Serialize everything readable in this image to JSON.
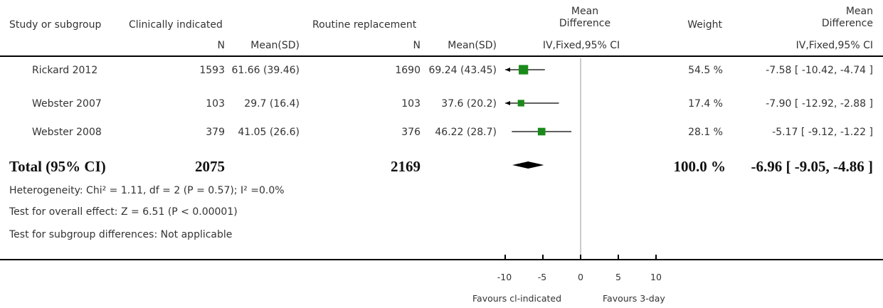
{
  "header": {
    "study": "Study or subgroup",
    "group1": "Clinically indicated",
    "group2": "Routine replacement",
    "md_line1": "Mean",
    "md_line2": "Difference",
    "weight": "Weight",
    "md2_line1": "Mean",
    "md2_line2": "Difference",
    "n1": "N",
    "mean1": "Mean(SD)",
    "n2": "N",
    "mean2": "Mean(SD)",
    "method": "IV,Fixed,95% CI",
    "method2": "IV,Fixed,95% CI"
  },
  "rows": [
    {
      "study": "Rickard 2012",
      "n1": "1593",
      "mean1": "61.66 (39.46)",
      "n2": "1690",
      "mean2": "69.24 (43.45)",
      "weight": "54.5 %",
      "ci": "-7.58 [ -10.42, -4.74 ]"
    },
    {
      "study": "Webster 2007",
      "n1": "103",
      "mean1": "29.7 (16.4)",
      "n2": "103",
      "mean2": "37.6 (20.2)",
      "weight": "17.4 %",
      "ci": "-7.90 [ -12.92, -2.88 ]"
    },
    {
      "study": "Webster 2008",
      "n1": "379",
      "mean1": "41.05 (26.6)",
      "n2": "376",
      "mean2": "46.22 (28.7)",
      "weight": "28.1 %",
      "ci": "-5.17 [ -9.12, -1.22 ]"
    }
  ],
  "total": {
    "label": "Total (95% CI)",
    "n1": "2075",
    "n2": "2169",
    "weight": "100.0 %",
    "ci": "-6.96 [ -9.05, -4.86 ]"
  },
  "notes": {
    "heterogeneity": "Heterogeneity: Chi² = 1.11, df = 2 (P = 0.57); I² =0.0%",
    "overall": "Test for overall effect: Z = 6.51 (P < 0.00001)",
    "subgroup": "Test for subgroup differences: Not applicable"
  },
  "axis": {
    "ticks": [
      "-10",
      "-5",
      "0",
      "5",
      "10"
    ],
    "favours_left": "Favours cl-indicated",
    "favours_right": "Favours 3-day"
  },
  "colors": {
    "marker": "#1a8a1a",
    "line": "#000000",
    "refline": "#999999"
  },
  "chart_data": {
    "type": "forest",
    "xlim": [
      -10,
      10
    ],
    "ticks": [
      -10,
      -5,
      0,
      5,
      10
    ],
    "studies": [
      {
        "name": "Rickard 2012",
        "md": -7.58,
        "lo": -10.42,
        "hi": -4.74,
        "weight": 54.5
      },
      {
        "name": "Webster 2007",
        "md": -7.9,
        "lo": -12.92,
        "hi": -2.88,
        "weight": 17.4
      },
      {
        "name": "Webster 2008",
        "md": -5.17,
        "lo": -9.12,
        "hi": -1.22,
        "weight": 28.1
      }
    ],
    "total": {
      "md": -6.96,
      "lo": -9.05,
      "hi": -4.86
    }
  }
}
